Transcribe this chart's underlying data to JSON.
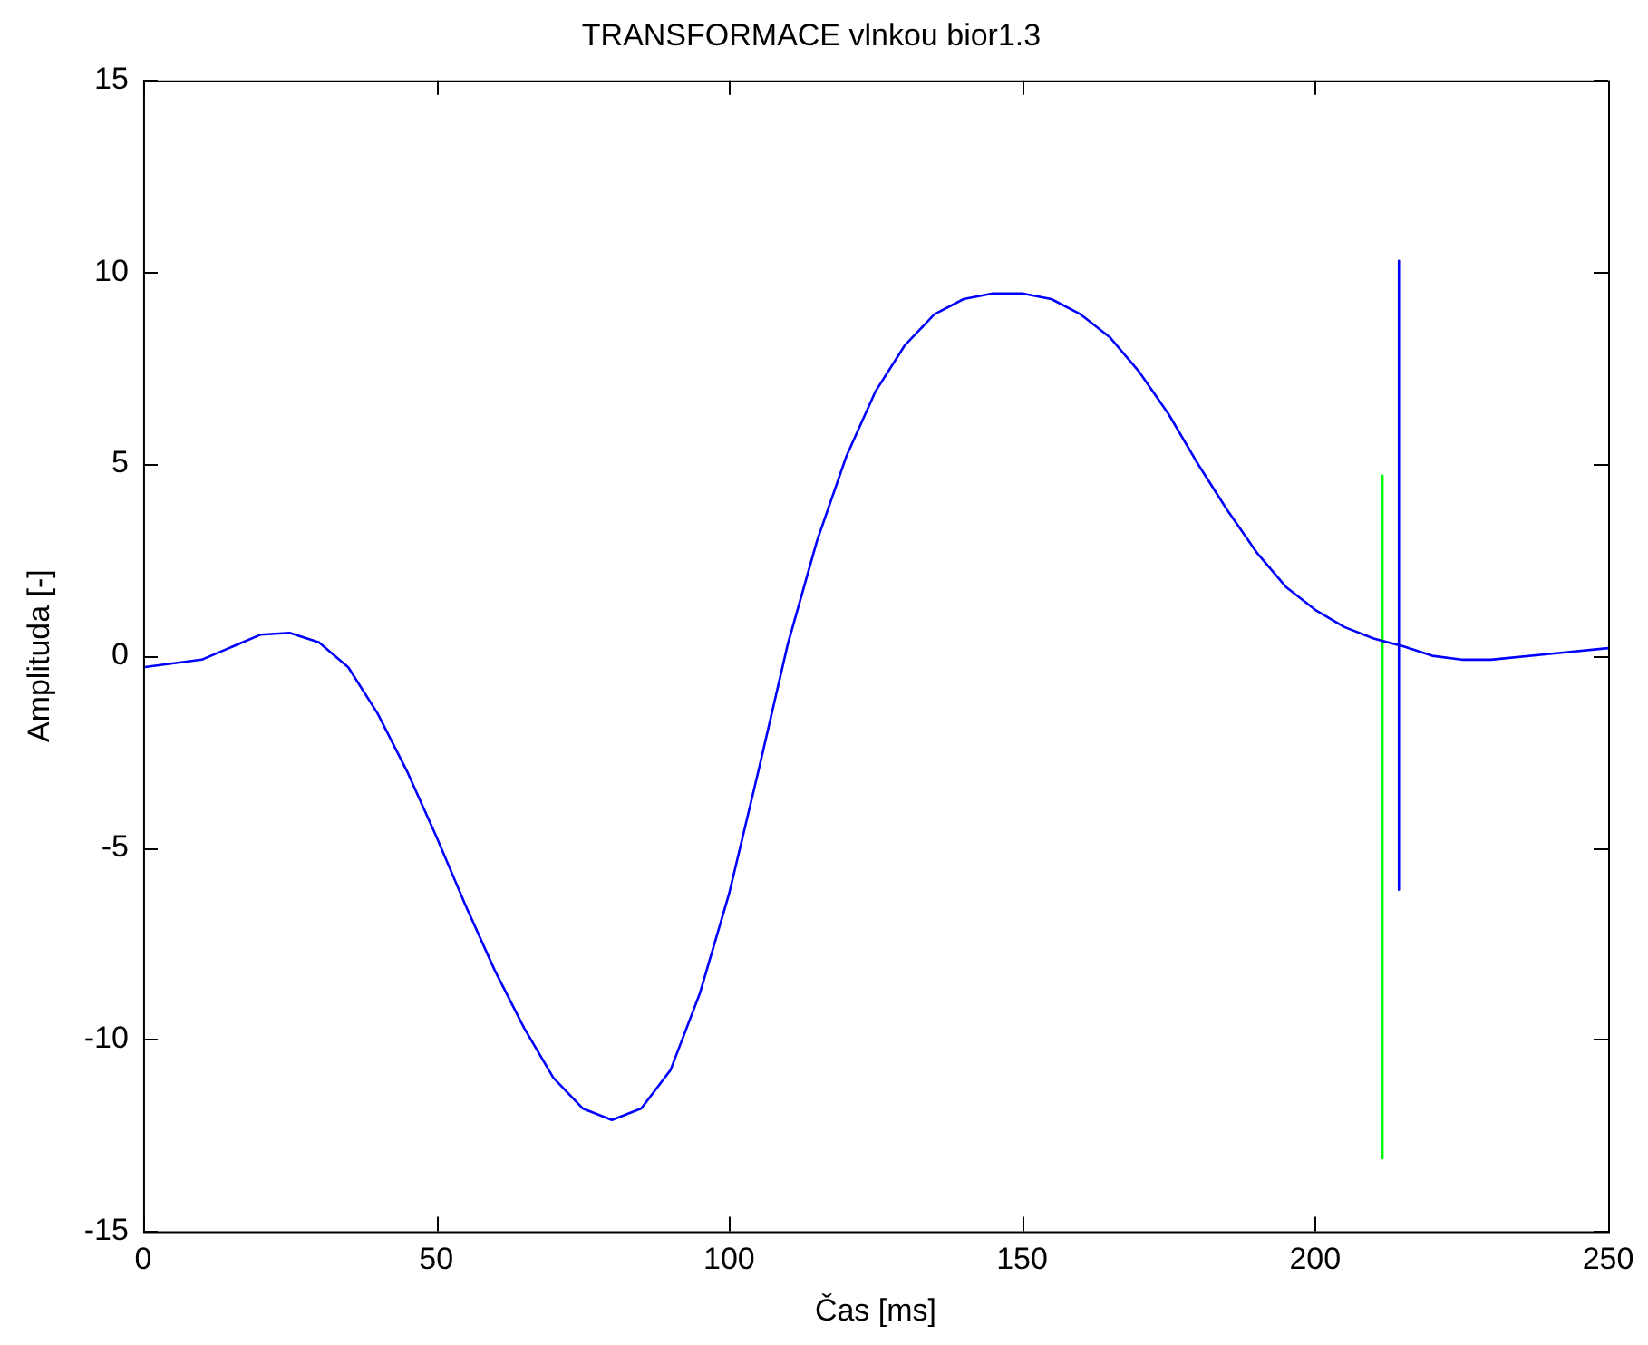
{
  "chart_data": {
    "type": "line",
    "title": "TRANSFORMACE vlnkou bior1.3",
    "xlabel": "Čas [ms]",
    "ylabel": "Amplituda [-]",
    "xlim": [
      0,
      250
    ],
    "xticks": [
      0,
      50,
      100,
      150,
      200,
      250
    ],
    "ylim": [
      -15,
      15
    ],
    "yticks": [
      -15,
      -10,
      -5,
      0,
      5,
      10,
      15
    ],
    "grid": false,
    "legend": false,
    "marker": "none",
    "line_style": "solid",
    "series": [
      {
        "color": "#0000ff",
        "x": [
          0,
          10,
          20,
          25,
          30,
          35,
          40,
          45,
          50,
          55,
          60,
          65,
          70,
          75,
          80,
          85,
          90,
          95,
          100,
          105,
          110,
          115,
          120,
          125,
          130,
          135,
          140,
          145,
          150,
          155,
          160,
          165,
          170,
          175,
          180,
          185,
          190,
          195,
          200,
          205,
          210,
          215,
          220,
          225,
          230,
          240,
          250
        ],
        "values": [
          -0.3,
          -0.1,
          0.55,
          0.6,
          0.35,
          -0.3,
          -1.5,
          -3.0,
          -4.7,
          -6.5,
          -8.2,
          -9.7,
          -11.0,
          -11.8,
          -12.1,
          -11.8,
          -10.8,
          -8.8,
          -6.2,
          -3.0,
          0.3,
          3.0,
          5.2,
          6.9,
          8.1,
          8.9,
          9.3,
          9.45,
          9.45,
          9.3,
          8.9,
          8.3,
          7.4,
          6.3,
          5.0,
          3.8,
          2.7,
          1.8,
          1.2,
          0.75,
          0.45,
          0.25,
          0.0,
          -0.1,
          -0.1,
          0.05,
          0.2
        ]
      },
      {
        "color": "#00ff00",
        "x": [
          211.5,
          211.5
        ],
        "values": [
          4.7,
          -13.1
        ]
      },
      {
        "color": "#0000ff",
        "x": [
          214.3,
          214.3
        ],
        "values": [
          10.3,
          -6.1
        ]
      }
    ]
  }
}
